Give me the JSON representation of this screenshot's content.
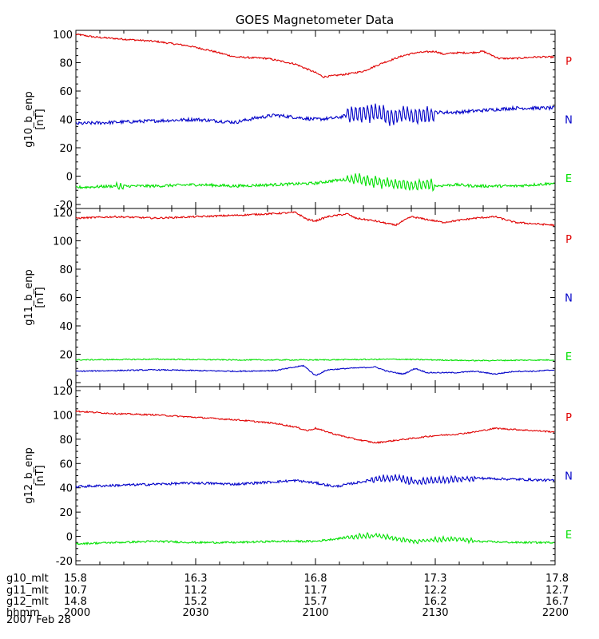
{
  "chart_data": {
    "type": "line",
    "title": "GOES Magnetometer Data",
    "date_label": "2007 Feb 28",
    "x_axis": {
      "unit": "hhmm",
      "range": [
        "2000",
        "2200"
      ],
      "rows": [
        {
          "label": "g10_mlt",
          "values": [
            "15.8",
            "16.3",
            "16.8",
            "17.3",
            "17.8"
          ]
        },
        {
          "label": "g11_mlt",
          "values": [
            "10.7",
            "11.2",
            "11.7",
            "12.2",
            "12.7"
          ]
        },
        {
          "label": "g12_mlt",
          "values": [
            "14.8",
            "15.2",
            "15.7",
            "16.2",
            "16.7"
          ]
        },
        {
          "label": "hhmm",
          "values": [
            "2000",
            "2030",
            "2100",
            "2130",
            "2200"
          ]
        }
      ]
    },
    "colors": {
      "P": "#e00000",
      "N": "#0000c8",
      "E": "#00e000"
    },
    "panels": [
      {
        "ylabel": "g10_b_enp",
        "yunit": "[nT]",
        "ylim": [
          -20,
          100
        ],
        "yticks": [
          "100",
          "80",
          "60",
          "40",
          "20",
          "0",
          "-20"
        ],
        "series": [
          {
            "name": "P",
            "color": "#e00000",
            "noise": 0.6,
            "x": [
              0,
              5,
              10,
              20,
              28,
              33,
              40,
              48,
              55,
              60,
              62,
              65,
              68,
              72,
              77,
              82,
              85,
              90,
              92,
              95,
              99,
              102,
              106,
              110,
              115,
              120
            ],
            "y": [
              100,
              98,
              97,
              95,
              92,
              89,
              84,
              83,
              79,
              73,
              70,
              71,
              72,
              74,
              80,
              85,
              87,
              88,
              86,
              87,
              87,
              88,
              83,
              83,
              84,
              84
            ]
          },
          {
            "name": "N",
            "color": "#0000c8",
            "noise": 1.2,
            "x": [
              0,
              10,
              20,
              30,
              40,
              45,
              50,
              60,
              65,
              70,
              75,
              80,
              82,
              85,
              90,
              95,
              100,
              110,
              120
            ],
            "y": [
              37,
              38,
              39,
              40,
              38,
              41,
              43,
              40,
              41,
              44,
              45,
              42,
              44,
              42,
              45,
              45,
              46,
              48,
              48
            ]
          },
          {
            "name": "E",
            "color": "#00e000",
            "noise": 1.0,
            "x": [
              0,
              10,
              20,
              30,
              40,
              50,
              60,
              65,
              70,
              75,
              80,
              85,
              88,
              90,
              95,
              100,
              110,
              120
            ],
            "y": [
              -8,
              -7,
              -7,
              -6,
              -7,
              -6,
              -5,
              -3,
              -2,
              -4,
              -5,
              -7,
              -5,
              -7,
              -6,
              -7,
              -7,
              -5
            ]
          }
        ],
        "bursts": [
          {
            "series": "N",
            "from": 68,
            "to": 90,
            "amp": 7
          },
          {
            "series": "E",
            "from": 68,
            "to": 90,
            "amp": 4
          },
          {
            "series": "E",
            "from": 10,
            "to": 12,
            "amp": 3
          }
        ],
        "labels": [
          "P",
          "N",
          "E"
        ]
      },
      {
        "ylabel": "g11_b_enp",
        "yunit": "[nT]",
        "ylim": [
          0,
          120
        ],
        "yticks": [
          "120",
          "100",
          "80",
          "60",
          "40",
          "20",
          "0"
        ],
        "series": [
          {
            "name": "P",
            "color": "#e00000",
            "noise": 0.6,
            "x": [
              0,
              10,
              20,
              30,
              40,
              48,
              55,
              58,
              60,
              63,
              68,
              70,
              75,
              80,
              84,
              88,
              92,
              100,
              105,
              110,
              115,
              120
            ],
            "y": [
              116,
              117,
              116,
              117,
              118,
              119,
              120,
              115,
              114,
              117,
              119,
              116,
              114,
              111,
              117,
              115,
              113,
              116,
              117,
              113,
              112,
              111
            ]
          },
          {
            "name": "N",
            "color": "#0000c8",
            "noise": 0.4,
            "x": [
              0,
              10,
              20,
              30,
              40,
              50,
              57,
              60,
              63,
              68,
              75,
              78,
              82,
              85,
              88,
              95,
              100,
              105,
              110,
              115,
              120
            ],
            "y": [
              8,
              8.5,
              9,
              8.5,
              8,
              8.5,
              12,
              5,
              9,
              10,
              11,
              8,
              6,
              10,
              7,
              7,
              8,
              6,
              8,
              8,
              9
            ]
          },
          {
            "name": "E",
            "color": "#00e000",
            "noise": 0.4,
            "x": [
              0,
              20,
              40,
              60,
              80,
              100,
              120
            ],
            "y": [
              16,
              16.5,
              16,
              16,
              16.5,
              15.5,
              16
            ]
          }
        ],
        "bursts": [],
        "labels": [
          "P",
          "N",
          "E"
        ]
      },
      {
        "ylabel": "g12_b_enp",
        "yunit": "[nT]",
        "ylim": [
          -20,
          120
        ],
        "yticks": [
          "120",
          "100",
          "80",
          "60",
          "40",
          "20",
          "0",
          "-20"
        ],
        "series": [
          {
            "name": "P",
            "color": "#e00000",
            "noise": 0.6,
            "x": [
              0,
              10,
              20,
              30,
              40,
              50,
              55,
              58,
              60,
              65,
              70,
              75,
              80,
              85,
              90,
              95,
              100,
              105,
              110,
              115,
              120
            ],
            "y": [
              103,
              101,
              100,
              98,
              96,
              93,
              90,
              87,
              89,
              84,
              80,
              77,
              79,
              81,
              83,
              84,
              86,
              89,
              88,
              87,
              86
            ]
          },
          {
            "name": "N",
            "color": "#0000c8",
            "noise": 1.0,
            "x": [
              0,
              10,
              20,
              30,
              40,
              50,
              55,
              60,
              65,
              70,
              75,
              80,
              85,
              90,
              95,
              100,
              110,
              120
            ],
            "y": [
              41,
              42,
              43,
              44,
              43,
              45,
              46,
              44,
              41,
              44,
              47,
              48,
              45,
              46,
              47,
              48,
              47,
              46
            ]
          },
          {
            "name": "E",
            "color": "#00e000",
            "noise": 0.8,
            "x": [
              0,
              10,
              20,
              30,
              40,
              50,
              60,
              65,
              70,
              75,
              80,
              85,
              90,
              95,
              100,
              110,
              120
            ],
            "y": [
              -6,
              -5,
              -4,
              -5,
              -5,
              -4,
              -4,
              -2,
              0,
              1,
              -2,
              -4,
              -3,
              -2,
              -4,
              -5,
              -5
            ]
          }
        ],
        "bursts": [
          {
            "series": "N",
            "from": 74,
            "to": 100,
            "amp": 3
          },
          {
            "series": "E",
            "from": 68,
            "to": 100,
            "amp": 2
          }
        ],
        "labels": [
          "P",
          "N",
          "E"
        ]
      }
    ]
  }
}
